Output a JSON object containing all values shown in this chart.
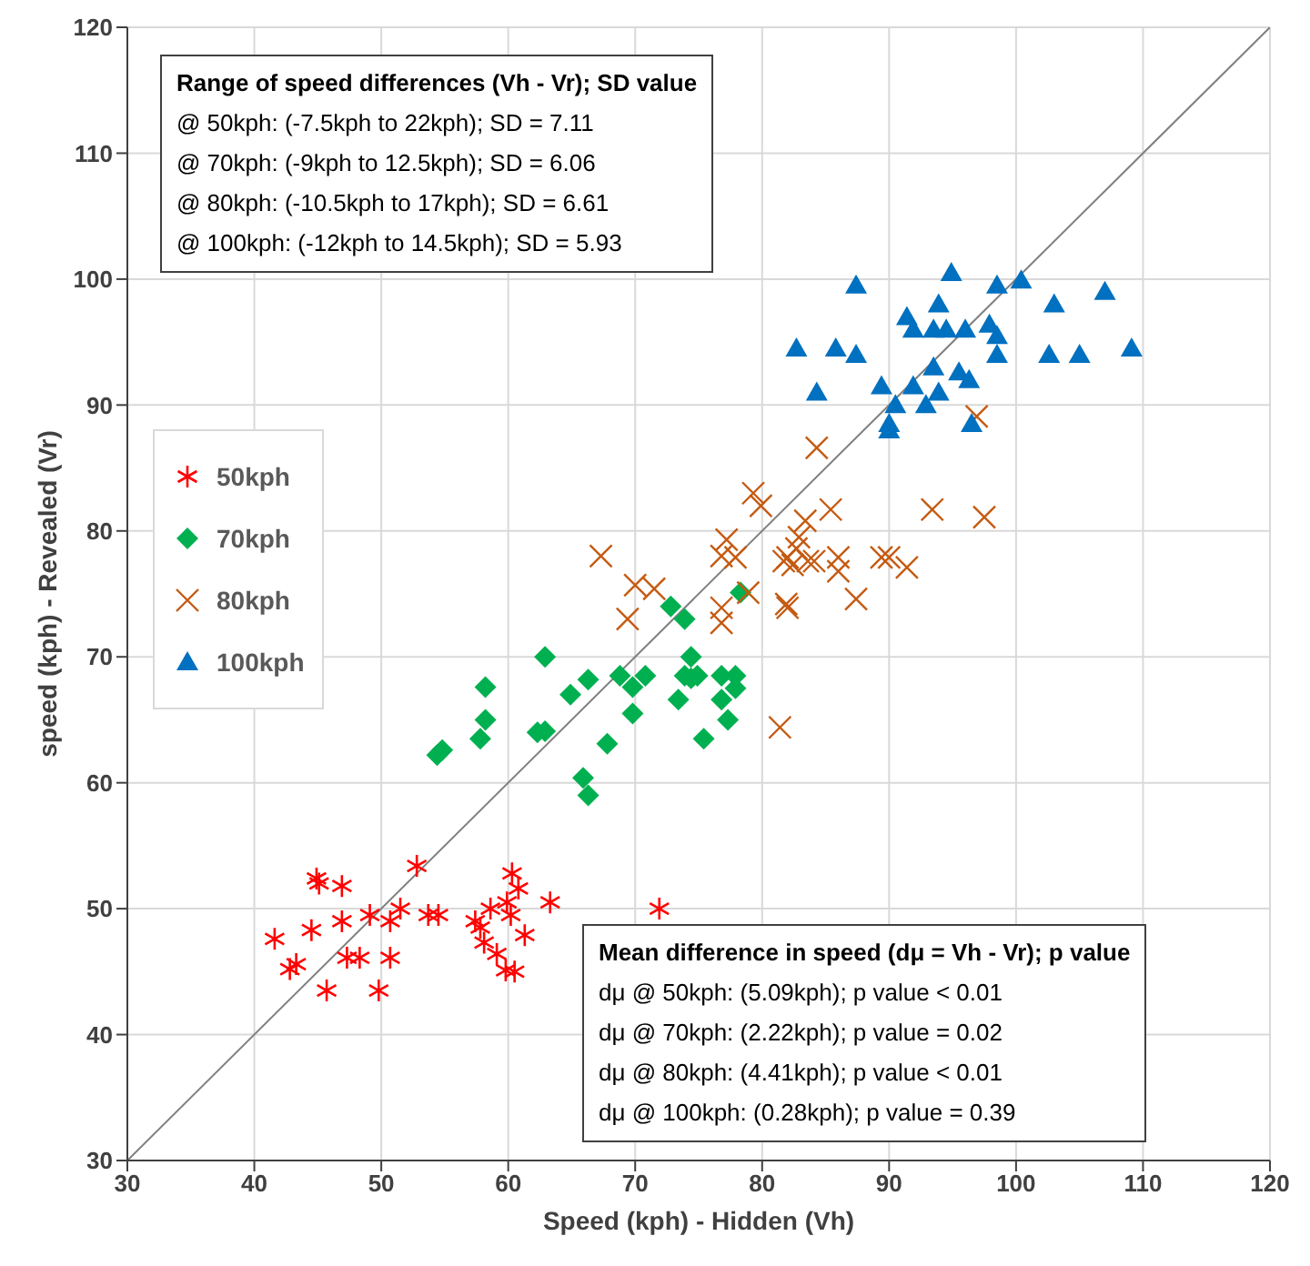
{
  "chart_data": {
    "type": "scatter",
    "xlabel": "Speed (kph) - Hidden (Vh)",
    "ylabel": "speed (kph) - Revealed (Vr)",
    "xlim": [
      30,
      120
    ],
    "ylim": [
      30,
      120
    ],
    "xticks": [
      30,
      40,
      50,
      60,
      70,
      80,
      90,
      100,
      110,
      120
    ],
    "yticks": [
      30,
      40,
      50,
      60,
      70,
      80,
      90,
      100,
      110,
      120
    ],
    "grid": true,
    "legend": "left",
    "series": [
      {
        "name": "50kph",
        "color": "#ff0000",
        "x": [
          41.6,
          42.8,
          43.3,
          44.9,
          45.1,
          44.5,
          45.7,
          46.9,
          46.9,
          47.3,
          48.3,
          49.1,
          49.8,
          50.7,
          50.7,
          51.5,
          52.8,
          53.7,
          54.5,
          57.4,
          57.8,
          58.1,
          58.6,
          59.1,
          59.8,
          60.2,
          59.9,
          60.3,
          60.8,
          60.5,
          61.3,
          63.3,
          71.9
        ],
        "values": [
          47.6,
          45.2,
          45.6,
          52.4,
          52.0,
          48.3,
          43.5,
          49.0,
          51.8,
          46.1,
          46.1,
          49.5,
          43.5,
          49.0,
          46.1,
          50.0,
          53.4,
          49.5,
          49.5,
          49.0,
          48.5,
          47.3,
          50.0,
          46.4,
          45.1,
          49.5,
          50.5,
          52.8,
          51.6,
          45.0,
          47.9,
          50.5,
          50.0
        ]
      },
      {
        "name": "70kph",
        "color": "#00b050",
        "marker": "diamond",
        "x": [
          54.4,
          54.8,
          58.2,
          58.2,
          57.8,
          62.9,
          62.3,
          62.9,
          64.9,
          66.3,
          65.9,
          66.3,
          67.8,
          68.8,
          69.8,
          69.8,
          70.8,
          72.8,
          73.9,
          73.4,
          74.4,
          73.9,
          74.4,
          74.9,
          75.4,
          76.8,
          77.9,
          77.9,
          76.8,
          77.3,
          78.3
        ],
        "values": [
          62.2,
          62.6,
          67.6,
          65.0,
          63.5,
          70.0,
          64.0,
          64.1,
          67.0,
          68.2,
          60.4,
          59.0,
          63.1,
          68.5,
          67.6,
          65.5,
          68.5,
          74.0,
          73.0,
          66.6,
          70.0,
          68.5,
          68.3,
          68.5,
          63.5,
          68.5,
          68.5,
          67.5,
          66.6,
          65.0,
          75.1
        ]
      },
      {
        "name": "80kph",
        "color": "#c55a11",
        "marker": "cross",
        "x": [
          67.3,
          70.0,
          71.5,
          69.4,
          76.8,
          77.2,
          77.9,
          76.8,
          76.8,
          78.9,
          79.3,
          79.9,
          81.4,
          82.0,
          82.0,
          84.3,
          85.4,
          83.4,
          82.9,
          82.7,
          81.7,
          82.4,
          83.6,
          84.1,
          86.0,
          86.0,
          81.9,
          87.4,
          89.4,
          90.0,
          91.4,
          93.4,
          97.5,
          96.9
        ],
        "values": [
          78.0,
          75.7,
          75.4,
          73.0,
          78.0,
          79.3,
          77.9,
          73.9,
          72.7,
          75.1,
          83.0,
          82.0,
          64.4,
          77.9,
          73.9,
          86.6,
          81.7,
          80.8,
          79.5,
          78.6,
          77.6,
          77.3,
          77.6,
          77.6,
          77.9,
          76.8,
          74.2,
          74.6,
          77.9,
          77.9,
          77.1,
          81.7,
          81.1,
          89.1
        ]
      },
      {
        "name": "100kph",
        "color": "#0070c0",
        "marker": "triangle",
        "x": [
          87.4,
          94.9,
          98.5,
          100.4,
          107.0,
          103.0,
          93.9,
          91.4,
          91.9,
          93.5,
          94.5,
          96.0,
          97.9,
          98.5,
          98.5,
          102.6,
          105.0,
          109.1,
          82.7,
          85.8,
          87.4,
          84.3,
          89.4,
          93.5,
          91.9,
          95.5,
          96.3,
          93.9,
          90.5,
          92.9,
          90.0,
          90.0,
          96.5
        ],
        "values": [
          99.5,
          100.5,
          99.5,
          99.9,
          99.0,
          98.0,
          98.0,
          97.0,
          96.0,
          96.0,
          96.0,
          96.0,
          96.4,
          95.5,
          94.0,
          94.0,
          94.0,
          94.5,
          94.5,
          94.5,
          94.0,
          91.0,
          91.5,
          93.0,
          91.5,
          92.6,
          92.0,
          91.0,
          90.0,
          90.0,
          88.5,
          88.0,
          88.5
        ]
      },
      {
        "type": "line",
        "color": "#808080",
        "x": [
          30,
          120
        ],
        "values": [
          30,
          120
        ]
      }
    ],
    "annotations": [
      "Range of speed differences (Vh - Vr); SD value",
      "@ 50kph: (-7.5kph to 22kph); SD = 7.11",
      "@ 70kph: (-9kph to 12.5kph); SD = 6.06",
      "@ 80kph: (-10.5kph to 17kph); SD = 6.61",
      "@ 100kph: (-12kph to 14.5kph); SD = 5.93",
      "Mean difference in speed (dμ = Vh - Vr); p value",
      "dμ @ 50kph: (5.09kph); p value < 0.01",
      "dμ @ 70kph: (2.22kph); p value = 0.02",
      "dμ @ 80kph: (4.41kph); p value < 0.01",
      "dμ @ 100kph: (0.28kph); p value = 0.39"
    ]
  }
}
